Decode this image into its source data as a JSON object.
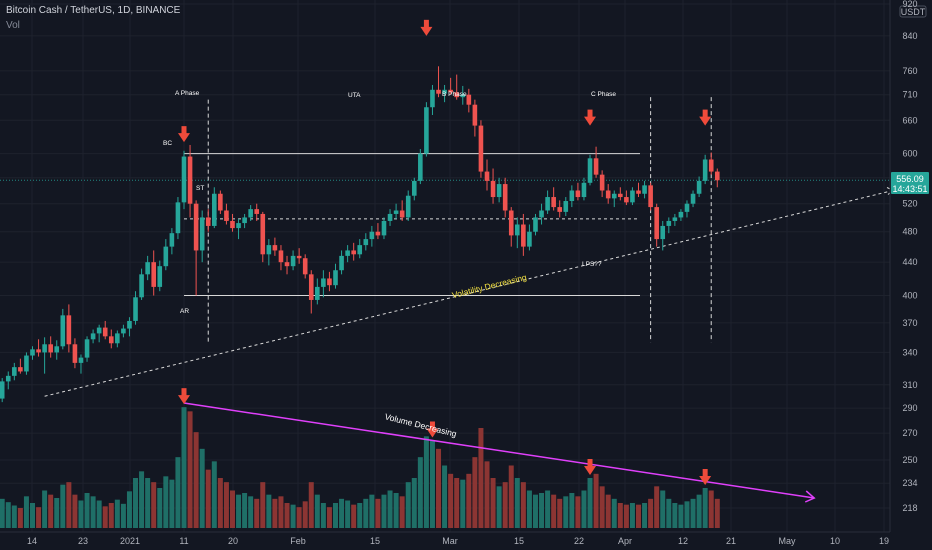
{
  "header": {
    "symbol_title": "Bitcoin Cash / TetherUS, 1D, BINANCE",
    "volume_label": "Vol"
  },
  "colors": {
    "background": "#131722",
    "bull": "#26a69a",
    "bear": "#ef5350",
    "bull_vol": "#1f6f67",
    "bear_vol": "#8c3533",
    "grid": "#1e222d",
    "axis_text": "#b2b5be",
    "magenta": "#e040fb",
    "annotation_yellow": "#f5e342",
    "arrow_red": "#ef4b3b",
    "price_label_bg": "#26a69a"
  },
  "price_axis": {
    "currency": "USDT",
    "ticks": [
      "920",
      "840",
      "760",
      "710",
      "660",
      "600",
      "560",
      "520",
      "480",
      "440",
      "400",
      "370",
      "340",
      "310",
      "290",
      "270",
      "250",
      "234",
      "218"
    ],
    "current_price": "556.09",
    "countdown": "14:43:51"
  },
  "time_axis": {
    "ticks": [
      "14",
      "23",
      "2021",
      "11",
      "20",
      "Feb",
      "15",
      "Mar",
      "15",
      "22",
      "Apr",
      "12",
      "21",
      "May",
      "10",
      "19"
    ]
  },
  "annotations": {
    "a_phase": "A Phase",
    "b_phase": "B Phase",
    "c_phase": "C Phase",
    "bc": "BC",
    "st": "ST",
    "ar": "AR",
    "uta": "UTA",
    "lps": "LPS??",
    "volatility": "Volatility Decreasing",
    "volume": "Volume Decreasing"
  },
  "chart_data": {
    "type": "candlestick",
    "title": "Bitcoin Cash / TetherUS, 1D, BINANCE",
    "ylabel": "USDT",
    "y_scale": "log",
    "ylim": [
      200,
      940
    ],
    "range_levels": {
      "resistance": 600,
      "midline": 498,
      "support": 400
    },
    "candles": [
      [
        -26,
        276,
        284,
        266,
        272,
        25
      ],
      [
        -25,
        272,
        285,
        268,
        281,
        20
      ],
      [
        -24,
        281,
        288,
        276,
        279,
        18
      ],
      [
        -23,
        279,
        296,
        277,
        294,
        30
      ],
      [
        -22,
        294,
        300,
        289,
        296,
        22
      ],
      [
        -21,
        296,
        297,
        281,
        285,
        28
      ],
      [
        -20,
        285,
        301,
        283,
        298,
        21
      ],
      [
        -19,
        298,
        316,
        295,
        313,
        35
      ],
      [
        -18,
        313,
        322,
        306,
        318,
        31
      ],
      [
        -17,
        318,
        330,
        314,
        326,
        27
      ],
      [
        -16,
        326,
        334,
        320,
        322,
        24
      ],
      [
        -15,
        322,
        340,
        319,
        337,
        38
      ],
      [
        -14,
        337,
        346,
        333,
        343,
        30
      ],
      [
        -13,
        343,
        353,
        336,
        340,
        25
      ],
      [
        -12,
        340,
        355,
        320,
        348,
        45
      ],
      [
        -11,
        348,
        356,
        335,
        340,
        40
      ],
      [
        -10,
        340,
        352,
        333,
        346,
        36
      ],
      [
        -9,
        346,
        385,
        343,
        378,
        52
      ],
      [
        -8,
        378,
        390,
        340,
        348,
        55
      ],
      [
        -7,
        348,
        354,
        325,
        330,
        40
      ],
      [
        -6,
        330,
        338,
        320,
        335,
        33
      ],
      [
        -5,
        335,
        356,
        331,
        353,
        42
      ],
      [
        -4,
        353,
        363,
        349,
        359,
        38
      ],
      [
        -3,
        359,
        368,
        350,
        365,
        33
      ],
      [
        -2,
        365,
        372,
        353,
        356,
        26
      ],
      [
        -1,
        356,
        363,
        344,
        349,
        30
      ],
      [
        0,
        349,
        362,
        345,
        359,
        34
      ],
      [
        1,
        359,
        368,
        355,
        364,
        29
      ],
      [
        2,
        364,
        376,
        356,
        372,
        44
      ],
      [
        3,
        372,
        405,
        368,
        398,
        60
      ],
      [
        4,
        398,
        432,
        395,
        425,
        68
      ],
      [
        5,
        425,
        448,
        418,
        440,
        60
      ],
      [
        6,
        440,
        455,
        400,
        410,
        55
      ],
      [
        7,
        410,
        442,
        405,
        435,
        48
      ],
      [
        8,
        435,
        470,
        430,
        460,
        62
      ],
      [
        9,
        460,
        485,
        450,
        478,
        58
      ],
      [
        10,
        478,
        530,
        470,
        522,
        85
      ],
      [
        11,
        522,
        605,
        512,
        595,
        145
      ],
      [
        12,
        595,
        615,
        500,
        520,
        140
      ],
      [
        13,
        520,
        525,
        400,
        455,
        115
      ],
      [
        14,
        455,
        510,
        440,
        500,
        95
      ],
      [
        15,
        500,
        512,
        480,
        488,
        70
      ],
      [
        16,
        488,
        545,
        485,
        535,
        80
      ],
      [
        17,
        535,
        540,
        505,
        510,
        60
      ],
      [
        18,
        510,
        520,
        490,
        495,
        55
      ],
      [
        19,
        495,
        505,
        480,
        485,
        45
      ],
      [
        20,
        485,
        498,
        470,
        492,
        40
      ],
      [
        21,
        492,
        505,
        485,
        500,
        42
      ],
      [
        22,
        500,
        518,
        495,
        512,
        38
      ],
      [
        23,
        512,
        520,
        495,
        505,
        35
      ],
      [
        24,
        505,
        508,
        440,
        450,
        55
      ],
      [
        25,
        450,
        470,
        436,
        462,
        40
      ],
      [
        26,
        462,
        472,
        448,
        455,
        35
      ],
      [
        27,
        455,
        462,
        430,
        440,
        38
      ],
      [
        28,
        440,
        448,
        425,
        435,
        30
      ],
      [
        29,
        435,
        455,
        430,
        448,
        28
      ],
      [
        30,
        448,
        458,
        438,
        445,
        25
      ],
      [
        31,
        445,
        450,
        420,
        425,
        32
      ],
      [
        32,
        425,
        430,
        380,
        395,
        55
      ],
      [
        33,
        395,
        420,
        390,
        410,
        40
      ],
      [
        34,
        410,
        430,
        398,
        420,
        30
      ],
      [
        35,
        420,
        428,
        405,
        412,
        25
      ],
      [
        36,
        412,
        438,
        408,
        430,
        30
      ],
      [
        37,
        430,
        455,
        425,
        448,
        35
      ],
      [
        38,
        448,
        462,
        440,
        455,
        33
      ],
      [
        39,
        455,
        465,
        442,
        450,
        28
      ],
      [
        40,
        450,
        470,
        445,
        462,
        30
      ],
      [
        41,
        462,
        478,
        455,
        470,
        35
      ],
      [
        42,
        470,
        488,
        460,
        480,
        40
      ],
      [
        43,
        480,
        492,
        470,
        475,
        35
      ],
      [
        44,
        475,
        500,
        470,
        495,
        40
      ],
      [
        45,
        495,
        512,
        488,
        505,
        45
      ],
      [
        46,
        505,
        520,
        498,
        510,
        42
      ],
      [
        47,
        510,
        525,
        495,
        500,
        38
      ],
      [
        48,
        500,
        540,
        495,
        532,
        55
      ],
      [
        49,
        532,
        560,
        525,
        555,
        60
      ],
      [
        50,
        555,
        608,
        550,
        600,
        85
      ],
      [
        51,
        600,
        695,
        595,
        685,
        110
      ],
      [
        52,
        685,
        730,
        670,
        720,
        105
      ],
      [
        53,
        720,
        770,
        705,
        712,
        95
      ],
      [
        54,
        712,
        730,
        695,
        720,
        75
      ],
      [
        55,
        720,
        745,
        710,
        715,
        65
      ],
      [
        56,
        715,
        752,
        700,
        705,
        60
      ],
      [
        57,
        705,
        728,
        690,
        710,
        58
      ],
      [
        58,
        710,
        722,
        675,
        690,
        65
      ],
      [
        59,
        690,
        700,
        630,
        650,
        85
      ],
      [
        60,
        650,
        660,
        560,
        570,
        120
      ],
      [
        61,
        570,
        590,
        540,
        555,
        80
      ],
      [
        62,
        555,
        575,
        520,
        530,
        60
      ],
      [
        63,
        530,
        560,
        522,
        550,
        50
      ],
      [
        64,
        550,
        560,
        500,
        510,
        55
      ],
      [
        65,
        510,
        515,
        460,
        475,
        75
      ],
      [
        66,
        475,
        500,
        458,
        490,
        60
      ],
      [
        67,
        490,
        505,
        448,
        460,
        55
      ],
      [
        68,
        460,
        490,
        455,
        480,
        45
      ],
      [
        69,
        480,
        505,
        475,
        500,
        40
      ],
      [
        70,
        500,
        520,
        490,
        510,
        42
      ],
      [
        71,
        510,
        540,
        505,
        530,
        45
      ],
      [
        72,
        530,
        545,
        510,
        515,
        40
      ],
      [
        73,
        515,
        525,
        500,
        508,
        35
      ],
      [
        74,
        508,
        530,
        502,
        524,
        38
      ],
      [
        75,
        524,
        548,
        515,
        540,
        42
      ],
      [
        76,
        540,
        552,
        525,
        530,
        38
      ],
      [
        77,
        530,
        560,
        525,
        552,
        45
      ],
      [
        78,
        552,
        598,
        548,
        592,
        60
      ],
      [
        79,
        592,
        612,
        560,
        565,
        65
      ],
      [
        80,
        565,
        572,
        530,
        540,
        50
      ],
      [
        81,
        540,
        550,
        520,
        528,
        40
      ],
      [
        82,
        528,
        540,
        515,
        535,
        35
      ],
      [
        83,
        535,
        545,
        525,
        530,
        30
      ],
      [
        84,
        530,
        540,
        518,
        522,
        28
      ],
      [
        85,
        522,
        545,
        518,
        540,
        30
      ],
      [
        86,
        540,
        552,
        530,
        535,
        28
      ],
      [
        87,
        535,
        555,
        528,
        548,
        30
      ],
      [
        88,
        548,
        552,
        510,
        515,
        35
      ],
      [
        89,
        515,
        520,
        460,
        470,
        50
      ],
      [
        90,
        470,
        495,
        455,
        488,
        45
      ],
      [
        91,
        488,
        500,
        478,
        495,
        35
      ],
      [
        92,
        495,
        505,
        488,
        500,
        30
      ],
      [
        93,
        500,
        512,
        495,
        508,
        28
      ],
      [
        94,
        508,
        525,
        500,
        520,
        32
      ],
      [
        95,
        520,
        540,
        515,
        535,
        35
      ],
      [
        96,
        535,
        562,
        530,
        555,
        40
      ],
      [
        97,
        555,
        598,
        550,
        590,
        48
      ],
      [
        98,
        590,
        602,
        565,
        570,
        45
      ],
      [
        99,
        570,
        575,
        545,
        556,
        35
      ]
    ],
    "arrows_price": [
      [
        11,
        620
      ],
      [
        51,
        840
      ],
      [
        78,
        650
      ],
      [
        97,
        650
      ]
    ],
    "arrows_volume": [
      11,
      52,
      78,
      97
    ],
    "trendline": {
      "start": [
        -12,
        300
      ],
      "end": [
        128,
        540
      ]
    },
    "volume_trendline": {
      "start": [
        11,
        150
      ],
      "end": [
        115,
        36
      ]
    },
    "phase_lines": [
      [
        15,
        700,
        350
      ],
      [
        88,
        705,
        350
      ],
      [
        98,
        705,
        350
      ]
    ]
  }
}
